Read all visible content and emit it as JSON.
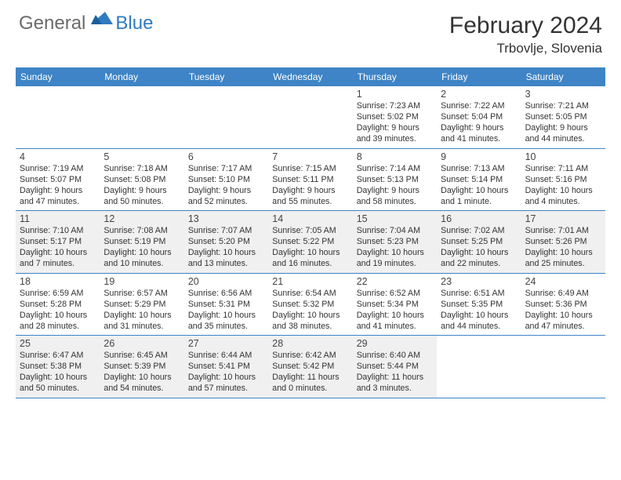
{
  "logo": {
    "part1": "General",
    "part2": "Blue"
  },
  "title": "February 2024",
  "location": "Trbovlje, Slovenia",
  "day_header_bg": "#3e84c6",
  "day_header_fg": "#ffffff",
  "shaded_bg": "#f0f0f0",
  "border_color": "#3e84c6",
  "days_of_week": [
    "Sunday",
    "Monday",
    "Tuesday",
    "Wednesday",
    "Thursday",
    "Friday",
    "Saturday"
  ],
  "weeks": [
    [
      null,
      null,
      null,
      null,
      {
        "num": "1",
        "sunrise": "7:23 AM",
        "sunset": "5:02 PM",
        "daylight": "9 hours and 39 minutes."
      },
      {
        "num": "2",
        "sunrise": "7:22 AM",
        "sunset": "5:04 PM",
        "daylight": "9 hours and 41 minutes."
      },
      {
        "num": "3",
        "sunrise": "7:21 AM",
        "sunset": "5:05 PM",
        "daylight": "9 hours and 44 minutes."
      }
    ],
    [
      {
        "num": "4",
        "sunrise": "7:19 AM",
        "sunset": "5:07 PM",
        "daylight": "9 hours and 47 minutes."
      },
      {
        "num": "5",
        "sunrise": "7:18 AM",
        "sunset": "5:08 PM",
        "daylight": "9 hours and 50 minutes."
      },
      {
        "num": "6",
        "sunrise": "7:17 AM",
        "sunset": "5:10 PM",
        "daylight": "9 hours and 52 minutes."
      },
      {
        "num": "7",
        "sunrise": "7:15 AM",
        "sunset": "5:11 PM",
        "daylight": "9 hours and 55 minutes."
      },
      {
        "num": "8",
        "sunrise": "7:14 AM",
        "sunset": "5:13 PM",
        "daylight": "9 hours and 58 minutes."
      },
      {
        "num": "9",
        "sunrise": "7:13 AM",
        "sunset": "5:14 PM",
        "daylight": "10 hours and 1 minute."
      },
      {
        "num": "10",
        "sunrise": "7:11 AM",
        "sunset": "5:16 PM",
        "daylight": "10 hours and 4 minutes."
      }
    ],
    [
      {
        "num": "11",
        "sunrise": "7:10 AM",
        "sunset": "5:17 PM",
        "daylight": "10 hours and 7 minutes."
      },
      {
        "num": "12",
        "sunrise": "7:08 AM",
        "sunset": "5:19 PM",
        "daylight": "10 hours and 10 minutes."
      },
      {
        "num": "13",
        "sunrise": "7:07 AM",
        "sunset": "5:20 PM",
        "daylight": "10 hours and 13 minutes."
      },
      {
        "num": "14",
        "sunrise": "7:05 AM",
        "sunset": "5:22 PM",
        "daylight": "10 hours and 16 minutes."
      },
      {
        "num": "15",
        "sunrise": "7:04 AM",
        "sunset": "5:23 PM",
        "daylight": "10 hours and 19 minutes."
      },
      {
        "num": "16",
        "sunrise": "7:02 AM",
        "sunset": "5:25 PM",
        "daylight": "10 hours and 22 minutes."
      },
      {
        "num": "17",
        "sunrise": "7:01 AM",
        "sunset": "5:26 PM",
        "daylight": "10 hours and 25 minutes."
      }
    ],
    [
      {
        "num": "18",
        "sunrise": "6:59 AM",
        "sunset": "5:28 PM",
        "daylight": "10 hours and 28 minutes."
      },
      {
        "num": "19",
        "sunrise": "6:57 AM",
        "sunset": "5:29 PM",
        "daylight": "10 hours and 31 minutes."
      },
      {
        "num": "20",
        "sunrise": "6:56 AM",
        "sunset": "5:31 PM",
        "daylight": "10 hours and 35 minutes."
      },
      {
        "num": "21",
        "sunrise": "6:54 AM",
        "sunset": "5:32 PM",
        "daylight": "10 hours and 38 minutes."
      },
      {
        "num": "22",
        "sunrise": "6:52 AM",
        "sunset": "5:34 PM",
        "daylight": "10 hours and 41 minutes."
      },
      {
        "num": "23",
        "sunrise": "6:51 AM",
        "sunset": "5:35 PM",
        "daylight": "10 hours and 44 minutes."
      },
      {
        "num": "24",
        "sunrise": "6:49 AM",
        "sunset": "5:36 PM",
        "daylight": "10 hours and 47 minutes."
      }
    ],
    [
      {
        "num": "25",
        "sunrise": "6:47 AM",
        "sunset": "5:38 PM",
        "daylight": "10 hours and 50 minutes."
      },
      {
        "num": "26",
        "sunrise": "6:45 AM",
        "sunset": "5:39 PM",
        "daylight": "10 hours and 54 minutes."
      },
      {
        "num": "27",
        "sunrise": "6:44 AM",
        "sunset": "5:41 PM",
        "daylight": "10 hours and 57 minutes."
      },
      {
        "num": "28",
        "sunrise": "6:42 AM",
        "sunset": "5:42 PM",
        "daylight": "11 hours and 0 minutes."
      },
      {
        "num": "29",
        "sunrise": "6:40 AM",
        "sunset": "5:44 PM",
        "daylight": "11 hours and 3 minutes."
      },
      null,
      null
    ]
  ],
  "labels": {
    "sunrise": "Sunrise:",
    "sunset": "Sunset:",
    "daylight": "Daylight:"
  }
}
